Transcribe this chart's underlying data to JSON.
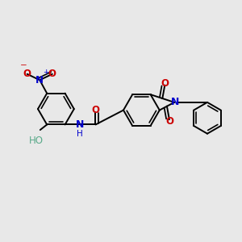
{
  "bg_color": "#e8e8e8",
  "bond_color": "#000000",
  "bond_width": 1.4,
  "colors": {
    "N": "#0000cc",
    "O": "#cc0000",
    "H_color": "#5aaa8a"
  },
  "fs": 8.5
}
